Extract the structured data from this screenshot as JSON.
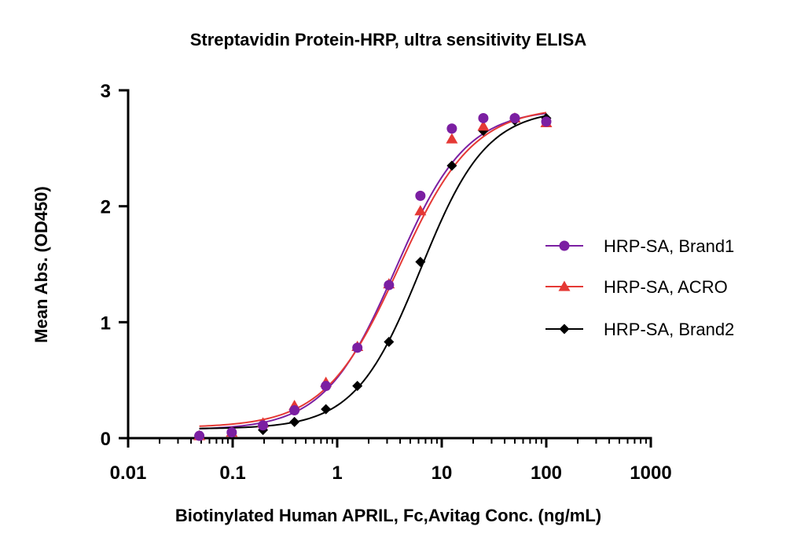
{
  "chart_data": {
    "type": "scatter",
    "title": "Streptavidin Protein-HRP, ultra sensitivity ELISA",
    "xlabel": "Biotinylated Human APRIL, Fc,Avitag Conc. (ng/mL)",
    "ylabel": "Mean Abs. (OD450)",
    "x_scale": "log",
    "xlim": [
      0.01,
      1000
    ],
    "ylim": [
      0,
      3
    ],
    "x_ticks": [
      0.01,
      0.1,
      1,
      10,
      100,
      1000
    ],
    "x_tick_labels": [
      "0.01",
      "0.1",
      "1",
      "10",
      "100",
      "1000"
    ],
    "y_ticks": [
      0,
      1,
      2,
      3
    ],
    "y_tick_labels": [
      "0",
      "1",
      "2",
      "3"
    ],
    "grid": false,
    "legend_position": "right",
    "fit": "four-parameter logistic curve per series",
    "series": [
      {
        "name": "HRP-SA, Brand1",
        "color": "#7b1fa2",
        "marker": "circle",
        "x": [
          0.048,
          0.098,
          0.195,
          0.39,
          0.78,
          1.56,
          3.125,
          6.25,
          12.5,
          25,
          50,
          100
        ],
        "y": [
          0.02,
          0.05,
          0.11,
          0.24,
          0.45,
          0.78,
          1.32,
          2.09,
          2.67,
          2.76,
          2.76,
          2.73
        ],
        "fit_params": {
          "bottom": 0.07,
          "top": 2.84,
          "ec50": 3.6,
          "hill": 1.28
        }
      },
      {
        "name": "HRP-SA, ACRO",
        "color": "#e53935",
        "marker": "triangle",
        "x": [
          0.048,
          0.098,
          0.195,
          0.39,
          0.78,
          1.56,
          3.125,
          6.25,
          12.5,
          25,
          50,
          100
        ],
        "y": [
          0.02,
          0.05,
          0.13,
          0.28,
          0.48,
          0.79,
          1.33,
          1.96,
          2.58,
          2.69,
          2.76,
          2.72
        ],
        "fit_params": {
          "bottom": 0.09,
          "top": 2.86,
          "ec50": 3.9,
          "hill": 1.22
        }
      },
      {
        "name": "HRP-SA, Brand2",
        "color": "#000000",
        "marker": "diamond",
        "x": [
          0.048,
          0.098,
          0.195,
          0.39,
          0.78,
          1.56,
          3.125,
          6.25,
          12.5,
          25,
          50,
          100
        ],
        "y": [
          0.02,
          0.04,
          0.07,
          0.14,
          0.25,
          0.45,
          0.83,
          1.52,
          2.35,
          2.65,
          2.74,
          2.76
        ],
        "fit_params": {
          "bottom": 0.08,
          "top": 2.84,
          "ec50": 6.3,
          "hill": 1.38
        }
      }
    ]
  }
}
